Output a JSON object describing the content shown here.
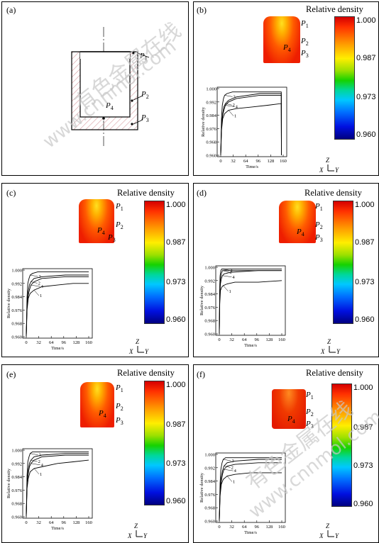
{
  "panels": [
    {
      "label": "(a)"
    },
    {
      "label": "(b)",
      "title": "Relative density"
    },
    {
      "label": "(c)",
      "title": "Relative density"
    },
    {
      "label": "(d)",
      "title": "Relative density"
    },
    {
      "label": "(e)",
      "title": "Relative density"
    },
    {
      "label": "(f)",
      "title": "Relative density"
    }
  ],
  "points": {
    "p1": "P",
    "p2": "P",
    "p3": "P",
    "p4": "P",
    "s1": "1",
    "s2": "2",
    "s3": "3",
    "s4": "4"
  },
  "colorbar": {
    "max": "1.000",
    "mid1": "0.987",
    "mid2": "0.973",
    "min": "0.960"
  },
  "axes_icon": {
    "z": "Z",
    "x": "X",
    "y": "Y"
  },
  "watermark": {
    "cn": "有色金属在线",
    "url": "www.cnnmol.com"
  },
  "chart_data": [
    {
      "panel": "b",
      "type": "line",
      "xlabel": "Time/s",
      "ylabel": "Relative density",
      "xticks": [
        "0",
        "32",
        "64",
        "96",
        "128",
        "160"
      ],
      "yticks": [
        "0.960",
        "0.968",
        "0.976",
        "0.984",
        "0.992",
        "1.000"
      ],
      "xlim": [
        0,
        160
      ],
      "ylim": [
        0.96,
        1.0
      ],
      "series": [
        {
          "name": "1",
          "x": [
            0,
            2,
            5,
            10,
            20,
            40,
            80,
            120,
            155,
            155.5
          ],
          "y": [
            0.96,
            0.975,
            0.982,
            0.985,
            0.987,
            0.988,
            0.989,
            0.99,
            0.991,
            0.96
          ]
        },
        {
          "name": "2",
          "x": [
            0,
            2,
            5,
            8,
            12,
            20,
            40,
            100,
            155,
            155.5
          ],
          "y": [
            0.96,
            0.978,
            0.985,
            0.989,
            0.991,
            0.993,
            0.995,
            0.997,
            0.997,
            0.96
          ]
        },
        {
          "name": "3",
          "x": [
            0,
            2,
            4,
            7,
            10,
            16,
            30,
            100,
            155,
            155.5
          ],
          "y": [
            0.96,
            0.982,
            0.99,
            0.994,
            0.996,
            0.997,
            0.998,
            0.998,
            0.998,
            0.96
          ]
        },
        {
          "name": "4",
          "x": [
            0,
            2,
            5,
            8,
            12,
            20,
            40,
            100,
            155,
            155.5
          ],
          "y": [
            0.96,
            0.978,
            0.984,
            0.987,
            0.99,
            0.992,
            0.994,
            0.996,
            0.996,
            0.96
          ]
        }
      ]
    },
    {
      "panel": "c",
      "type": "line",
      "xlabel": "Time/s",
      "ylabel": "Relative density",
      "xticks": [
        "0",
        "32",
        "64",
        "96",
        "128",
        "160"
      ],
      "yticks": [
        "0.960",
        "0.968",
        "0.976",
        "0.984",
        "0.992",
        "1.000"
      ],
      "xlim": [
        0,
        160
      ],
      "ylim": [
        0.96,
        1.0
      ],
      "series": [
        {
          "name": "1",
          "x": [
            0,
            2,
            5,
            10,
            20,
            40,
            80,
            120,
            160
          ],
          "y": [
            0.96,
            0.976,
            0.983,
            0.986,
            0.988,
            0.99,
            0.991,
            0.992,
            0.992
          ]
        },
        {
          "name": "2",
          "x": [
            0,
            2,
            5,
            8,
            12,
            20,
            40,
            100,
            160
          ],
          "y": [
            0.96,
            0.98,
            0.987,
            0.991,
            0.993,
            0.995,
            0.996,
            0.997,
            0.997
          ]
        },
        {
          "name": "3",
          "x": [
            0,
            2,
            4,
            7,
            10,
            16,
            30,
            100,
            160
          ],
          "y": [
            0.96,
            0.984,
            0.992,
            0.995,
            0.997,
            0.998,
            0.999,
            0.999,
            0.999
          ]
        },
        {
          "name": "4",
          "x": [
            0,
            2,
            5,
            8,
            12,
            20,
            40,
            100,
            160
          ],
          "y": [
            0.96,
            0.979,
            0.985,
            0.988,
            0.991,
            0.993,
            0.995,
            0.996,
            0.996
          ]
        }
      ]
    },
    {
      "panel": "d",
      "type": "line",
      "xlabel": "Time/s",
      "ylabel": "Relative density",
      "xticks": [
        "0",
        "32",
        "64",
        "96",
        "128",
        "160"
      ],
      "yticks": [
        "0.960",
        "0.968",
        "0.976",
        "0.984",
        "0.992",
        "1.000"
      ],
      "xlim": [
        0,
        160
      ],
      "ylim": [
        0.96,
        1.0
      ],
      "series": [
        {
          "name": "1",
          "x": [
            0,
            1,
            3,
            6,
            10,
            20,
            40,
            100,
            160
          ],
          "y": [
            0.96,
            0.978,
            0.986,
            0.988,
            0.989,
            0.99,
            0.991,
            0.991,
            0.992
          ]
        },
        {
          "name": "2",
          "x": [
            0,
            1,
            3,
            5,
            8,
            12,
            30,
            100,
            160
          ],
          "y": [
            0.96,
            0.985,
            0.993,
            0.996,
            0.998,
            0.998,
            0.998,
            0.998,
            0.998
          ]
        },
        {
          "name": "3",
          "x": [
            0,
            1,
            2,
            4,
            6,
            10,
            30,
            100,
            160
          ],
          "y": [
            0.96,
            0.988,
            0.995,
            0.998,
            0.999,
            0.999,
            0.999,
            0.999,
            0.999
          ]
        },
        {
          "name": "4",
          "x": [
            0,
            1,
            3,
            5,
            8,
            12,
            30,
            100,
            160
          ],
          "y": [
            0.96,
            0.983,
            0.99,
            0.993,
            0.995,
            0.996,
            0.997,
            0.998,
            0.998
          ]
        }
      ]
    },
    {
      "panel": "e",
      "type": "line",
      "xlabel": "Time/s",
      "ylabel": "Relative density",
      "xticks": [
        "0",
        "32",
        "64",
        "96",
        "128",
        "160"
      ],
      "yticks": [
        "0.960",
        "0.968",
        "0.976",
        "0.984",
        "0.992",
        "1.000"
      ],
      "xlim": [
        0,
        160
      ],
      "ylim": [
        0.96,
        1.0
      ],
      "series": [
        {
          "name": "1",
          "x": [
            0,
            2,
            5,
            10,
            20,
            40,
            80,
            120,
            160
          ],
          "y": [
            0.96,
            0.977,
            0.983,
            0.987,
            0.989,
            0.99,
            0.992,
            0.993,
            0.994
          ]
        },
        {
          "name": "2",
          "x": [
            0,
            2,
            5,
            8,
            12,
            20,
            40,
            100,
            160
          ],
          "y": [
            0.96,
            0.981,
            0.988,
            0.992,
            0.994,
            0.996,
            0.997,
            0.998,
            0.998
          ]
        },
        {
          "name": "3",
          "x": [
            0,
            2,
            4,
            7,
            10,
            16,
            30,
            100,
            160
          ],
          "y": [
            0.96,
            0.985,
            0.993,
            0.996,
            0.998,
            0.999,
            0.999,
            0.999,
            0.999
          ]
        },
        {
          "name": "4",
          "x": [
            0,
            2,
            5,
            8,
            12,
            20,
            40,
            100,
            160
          ],
          "y": [
            0.96,
            0.98,
            0.986,
            0.99,
            0.992,
            0.994,
            0.996,
            0.997,
            0.997
          ]
        }
      ]
    },
    {
      "panel": "f",
      "type": "line",
      "xlabel": "Time/s",
      "ylabel": "Relative density",
      "xticks": [
        "0",
        "32",
        "64",
        "96",
        "128",
        "160"
      ],
      "yticks": [
        "0.960",
        "0.968",
        "0.976",
        "0.984",
        "0.992",
        "1.000"
      ],
      "xlim": [
        0,
        160
      ],
      "ylim": [
        0.96,
        1.0
      ],
      "series": [
        {
          "name": "1",
          "x": [
            0,
            2,
            5,
            10,
            20,
            40,
            80,
            120,
            160
          ],
          "y": [
            0.96,
            0.975,
            0.982,
            0.985,
            0.987,
            0.988,
            0.989,
            0.989,
            0.989
          ]
        },
        {
          "name": "2",
          "x": [
            0,
            2,
            5,
            8,
            12,
            20,
            40,
            100,
            160
          ],
          "y": [
            0.96,
            0.979,
            0.986,
            0.99,
            0.993,
            0.995,
            0.996,
            0.997,
            0.997
          ]
        },
        {
          "name": "3",
          "x": [
            0,
            2,
            4,
            7,
            10,
            16,
            30,
            100,
            160
          ],
          "y": [
            0.96,
            0.983,
            0.991,
            0.995,
            0.997,
            0.998,
            0.998,
            0.998,
            0.998
          ]
        },
        {
          "name": "4",
          "x": [
            0,
            2,
            5,
            8,
            12,
            20,
            40,
            100,
            160
          ],
          "y": [
            0.96,
            0.978,
            0.984,
            0.988,
            0.991,
            0.993,
            0.994,
            0.995,
            0.995
          ]
        }
      ]
    }
  ]
}
